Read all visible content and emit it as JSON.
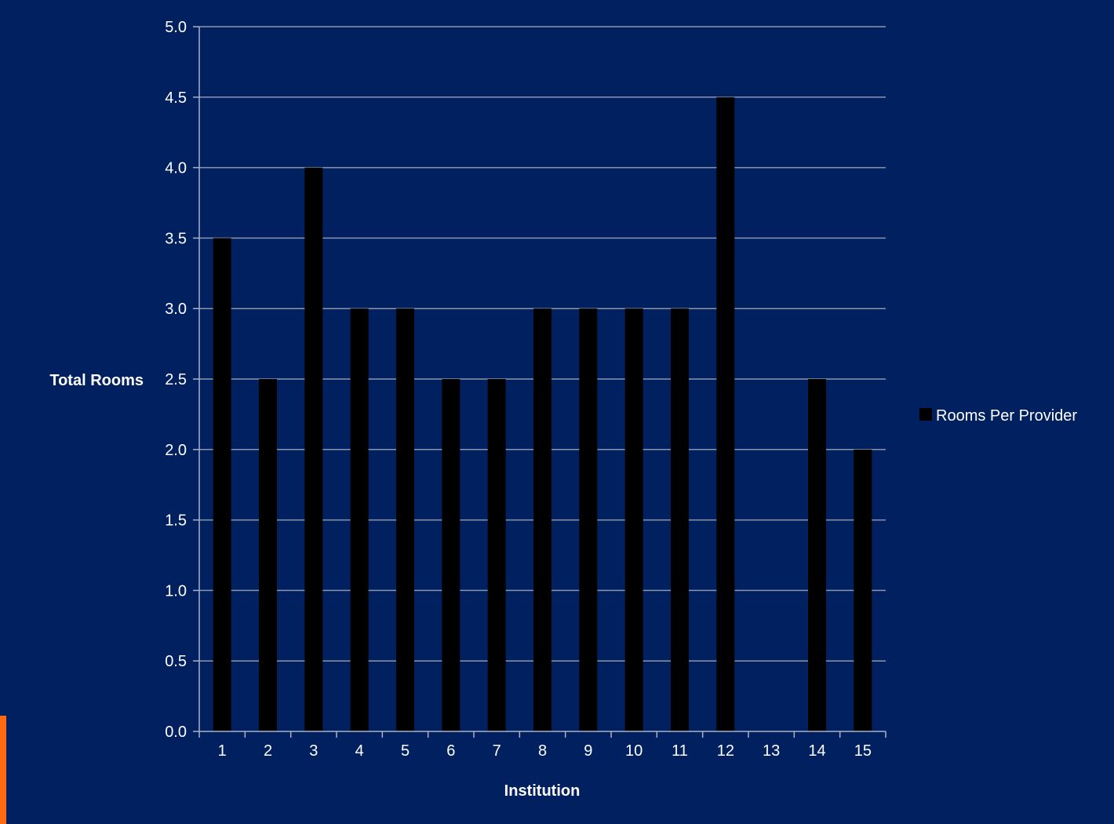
{
  "colors": {
    "background": "#002060",
    "bar": "#000000",
    "grid": "#8c95aa",
    "axis": "#aab2c8",
    "text": "#ffffff",
    "accent": "#ff6a13"
  },
  "chart_data": {
    "type": "bar",
    "categories": [
      "1",
      "2",
      "3",
      "4",
      "5",
      "6",
      "7",
      "8",
      "9",
      "10",
      "11",
      "12",
      "13",
      "14",
      "15"
    ],
    "series": [
      {
        "name": "Rooms Per Provider",
        "values": [
          3.5,
          2.5,
          4.0,
          3.0,
          3.0,
          2.5,
          2.5,
          3.0,
          3.0,
          3.0,
          3.0,
          4.5,
          null,
          2.5,
          2.0
        ]
      }
    ],
    "xlabel": "Institution",
    "ylabel": "Total Rooms",
    "ylim": [
      0,
      5
    ],
    "yticks": [
      "0.0",
      "0.5",
      "1.0",
      "1.5",
      "2.0",
      "2.5",
      "3.0",
      "3.5",
      "4.0",
      "4.5",
      "5.0"
    ],
    "grid": true,
    "legend_position": "right"
  }
}
